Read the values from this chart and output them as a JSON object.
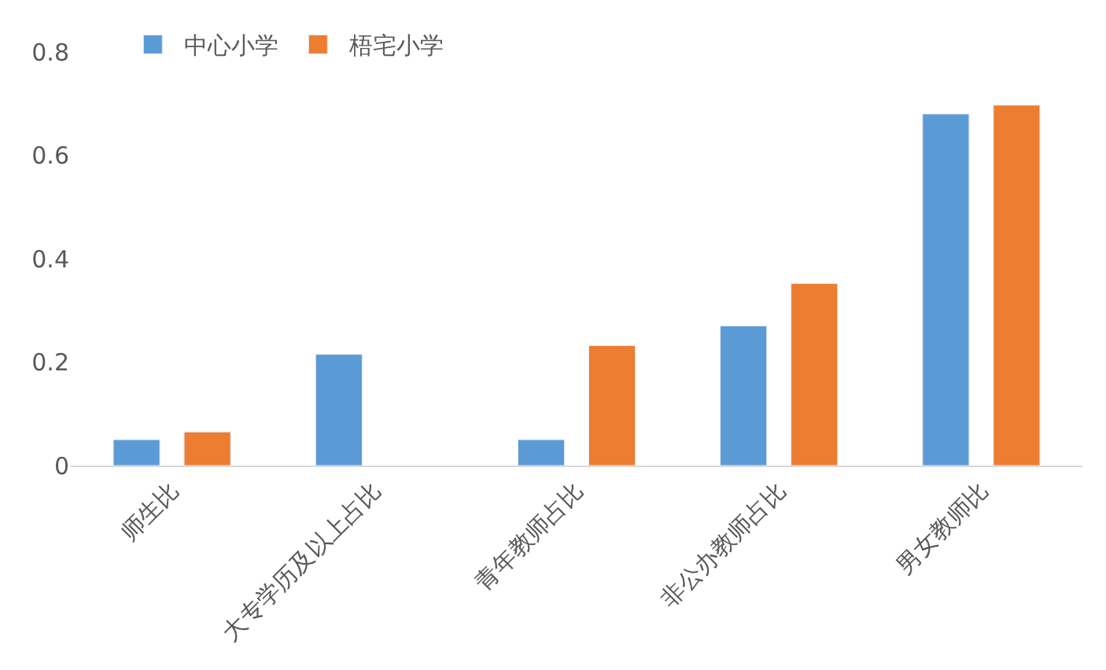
{
  "chart_data": {
    "type": "bar",
    "categories": [
      "师生比",
      "大专学历及以上占比",
      "青年教师占比",
      "非公办教师占比",
      "男女教师比"
    ],
    "series": [
      {
        "name": "中心小学",
        "color": "#5b9bd5",
        "values": [
          0.05,
          0.215,
          0.05,
          0.27,
          0.68
        ]
      },
      {
        "name": "梧宅小学",
        "color": "#ed7d31",
        "values": [
          0.065,
          null,
          0.232,
          0.352,
          0.697
        ]
      }
    ],
    "ylim": [
      0,
      0.8
    ],
    "yticks": [
      {
        "value": 0,
        "label": "0"
      },
      0.2,
      0.4,
      0.6,
      0.8
    ],
    "legend": "top left"
  }
}
